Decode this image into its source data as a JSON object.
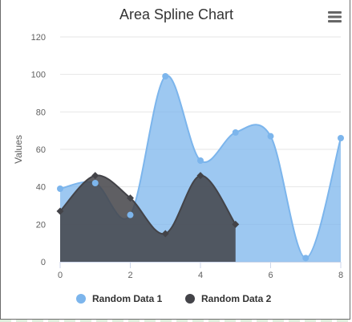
{
  "chart_data": {
    "type": "area",
    "title": "Area Spline Chart",
    "ylabel": "Values",
    "xlabel": "",
    "xlim": [
      0,
      8
    ],
    "ylim": [
      0,
      120
    ],
    "x_ticks": [
      0,
      2,
      4,
      6,
      8
    ],
    "y_ticks": [
      0,
      20,
      40,
      60,
      80,
      100,
      120
    ],
    "grid": true,
    "legend_position": "bottom-center",
    "series": [
      {
        "name": "Random Data 1",
        "color": "#7cb5ec",
        "marker": "circle",
        "x": [
          0,
          1,
          2,
          3,
          4,
          5,
          6,
          7,
          8
        ],
        "values": [
          39,
          42,
          25,
          99,
          54,
          69,
          67,
          2,
          66
        ]
      },
      {
        "name": "Random Data 2",
        "color": "#434348",
        "marker": "diamond",
        "x": [
          0,
          1,
          2,
          3,
          4,
          5
        ],
        "values": [
          27,
          46,
          34,
          15,
          46,
          20
        ]
      }
    ]
  },
  "menu": {
    "icon": "hamburger-menu-icon"
  }
}
